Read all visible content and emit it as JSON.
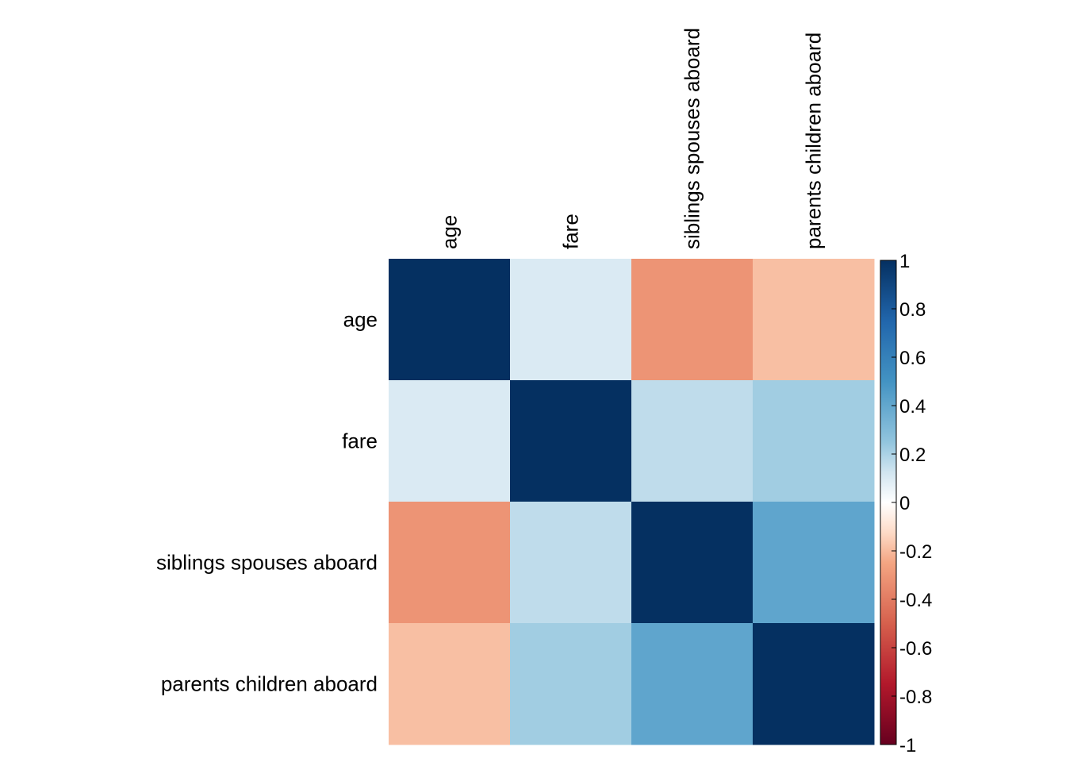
{
  "chart_data": {
    "type": "heatmap",
    "title": "",
    "variables": [
      "age",
      "fare",
      "siblings spouses aboard",
      "parents children aboard"
    ],
    "matrix": [
      [
        1.0,
        0.1,
        -0.31,
        -0.19
      ],
      [
        0.1,
        1.0,
        0.16,
        0.22
      ],
      [
        -0.31,
        0.16,
        1.0,
        0.41
      ],
      [
        -0.19,
        0.22,
        0.41,
        1.0
      ]
    ],
    "color_scale": {
      "range": [
        -1,
        1
      ],
      "ticks": [
        "1",
        "0.8",
        "0.6",
        "0.4",
        "0.2",
        "0",
        "-0.2",
        "-0.4",
        "-0.6",
        "-0.8",
        "-1"
      ],
      "tick_values": [
        1,
        0.8,
        0.6,
        0.4,
        0.2,
        0,
        -0.2,
        -0.4,
        -0.6,
        -0.8,
        -1
      ],
      "stops": [
        {
          "value": -1.0,
          "color": "#67001F"
        },
        {
          "value": -0.75,
          "color": "#B2182B"
        },
        {
          "value": -0.5,
          "color": "#D6604D"
        },
        {
          "value": -0.25,
          "color": "#F4A582"
        },
        {
          "value": -0.125,
          "color": "#FDDBC7"
        },
        {
          "value": 0.0,
          "color": "#FFFFFF"
        },
        {
          "value": 0.125,
          "color": "#D1E5F0"
        },
        {
          "value": 0.25,
          "color": "#92C5DE"
        },
        {
          "value": 0.5,
          "color": "#4393C3"
        },
        {
          "value": 0.75,
          "color": "#2166AC"
        },
        {
          "value": 1.0,
          "color": "#053061"
        }
      ]
    },
    "legend_position": "right",
    "grid": false
  }
}
